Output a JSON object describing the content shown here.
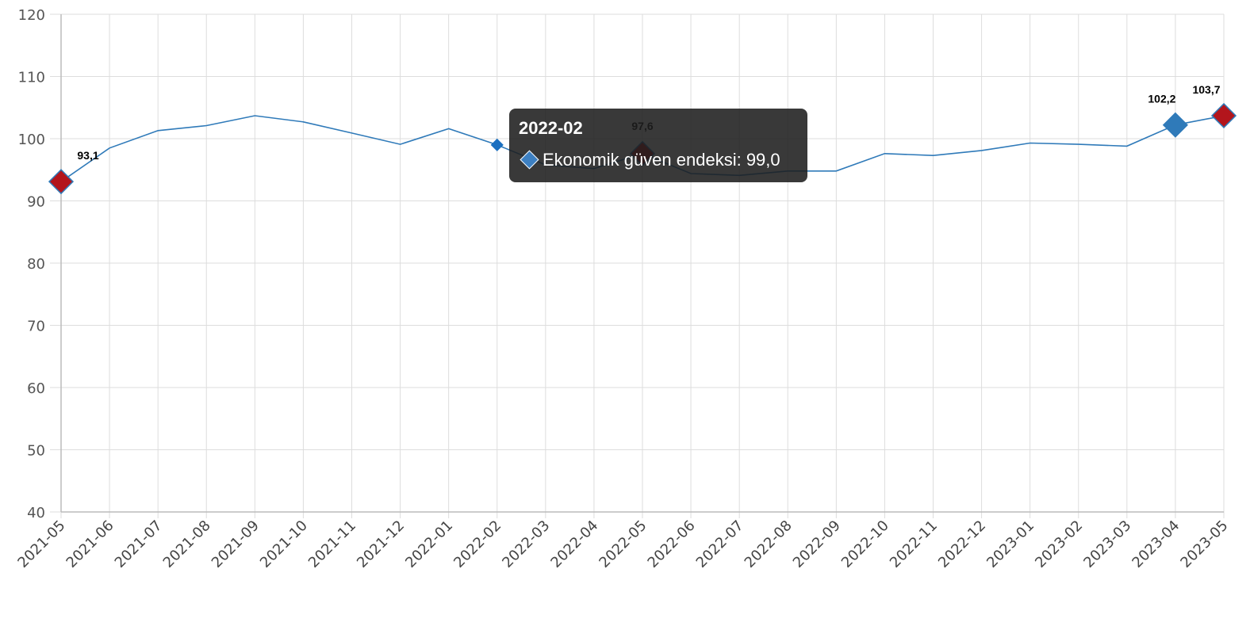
{
  "colors": {
    "line": "#2f7ab9",
    "marker_highlight": "#b3151c",
    "marker_blue": "#2f7ab9",
    "grid": "#dddddd",
    "axis": "#bbbbbb"
  },
  "chart_data": {
    "type": "line",
    "title": "",
    "xlabel": "",
    "ylabel": "",
    "ylim": [
      40,
      120
    ],
    "yticks": [
      40,
      50,
      60,
      70,
      80,
      90,
      100,
      110,
      120
    ],
    "grid": true,
    "categories": [
      "2021-05",
      "2021-06",
      "2021-07",
      "2021-08",
      "2021-09",
      "2021-10",
      "2021-11",
      "2021-12",
      "2022-01",
      "2022-02",
      "2022-03",
      "2022-04",
      "2022-05",
      "2022-06",
      "2022-07",
      "2022-08",
      "2022-09",
      "2022-10",
      "2022-11",
      "2022-12",
      "2023-01",
      "2023-02",
      "2023-03",
      "2023-04",
      "2023-05"
    ],
    "series": [
      {
        "name": "Ekonomik güven endeksi",
        "values": [
          93.1,
          98.5,
          101.3,
          102.1,
          103.7,
          102.7,
          100.9,
          99.1,
          101.6,
          99.0,
          95.8,
          95.2,
          97.6,
          94.4,
          94.1,
          94.8,
          94.8,
          97.6,
          97.3,
          98.1,
          99.3,
          99.1,
          98.8,
          102.2,
          103.7
        ]
      }
    ],
    "data_labels": [
      {
        "index": 0,
        "text": "93,1"
      },
      {
        "index": 12,
        "text": "97,6"
      },
      {
        "index": 23,
        "text": "102,2"
      },
      {
        "index": 24,
        "text": "103,7"
      }
    ],
    "tooltip": {
      "title": "2022-02",
      "text": "Ekonomik güven endeksi: 99,0"
    }
  }
}
